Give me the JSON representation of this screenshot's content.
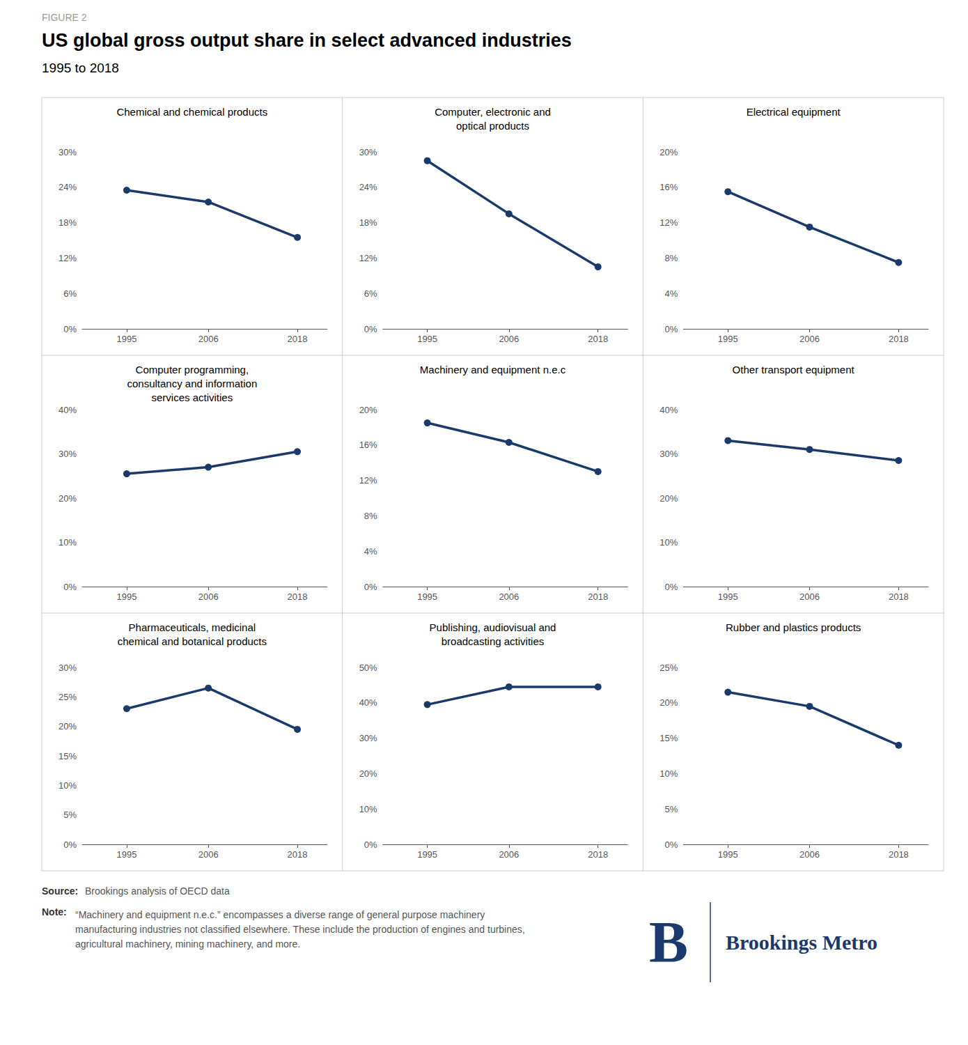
{
  "title": "US global gross output share in select advanced industries",
  "subtitle": "1995 to 2018",
  "annotations": [
    "FIGURE 2",
    "Source:",
    "Brookings analysis of OECD data",
    "Note:",
    "“Machinery and equipment n.e.c.” encompasses a diverse range of general purpose machinery manufacturing industries not classified elsewhere. These include the production of engines and turbines, agricultural machinery, mining machinery, and more.",
    "B",
    "Brookings Metro"
  ],
  "chart_data": [
    {
      "type": "line",
      "title": "Chemical and chemical products",
      "x": [
        1995,
        2006,
        2018
      ],
      "values": [
        0.235,
        0.215,
        0.155
      ],
      "xlim": [
        1989,
        2022
      ],
      "xticks": [
        1995,
        2006,
        2018
      ],
      "ylim": [
        0,
        0.3
      ],
      "yticks": [
        {
          "value": 0,
          "label": "0%"
        },
        {
          "value": 0.06,
          "label": "6%"
        },
        {
          "value": 0.12,
          "label": "12%"
        },
        {
          "value": 0.18,
          "label": "18%"
        },
        {
          "value": 0.24,
          "label": "24%"
        },
        {
          "value": 0.3,
          "label": "30%"
        }
      ],
      "color": "#1a3a6b",
      "marker": "circle",
      "grid": false
    },
    {
      "type": "line",
      "title": "Computer, electronic and\noptical products",
      "x": [
        1995,
        2006,
        2018
      ],
      "values": [
        0.285,
        0.195,
        0.105
      ],
      "xlim": [
        1989,
        2022
      ],
      "xticks": [
        1995,
        2006,
        2018
      ],
      "ylim": [
        0,
        0.3
      ],
      "yticks": [
        {
          "value": 0,
          "label": "0%"
        },
        {
          "value": 0.06,
          "label": "6%"
        },
        {
          "value": 0.12,
          "label": "12%"
        },
        {
          "value": 0.18,
          "label": "18%"
        },
        {
          "value": 0.24,
          "label": "24%"
        },
        {
          "value": 0.3,
          "label": "30%"
        }
      ],
      "color": "#1a3a6b",
      "marker": "circle",
      "grid": false
    },
    {
      "type": "line",
      "title": "Electrical equipment",
      "x": [
        1995,
        2006,
        2018
      ],
      "values": [
        0.155,
        0.115,
        0.075
      ],
      "xlim": [
        1989,
        2022
      ],
      "xticks": [
        1995,
        2006,
        2018
      ],
      "ylim": [
        0,
        0.2
      ],
      "yticks": [
        {
          "value": 0,
          "label": "0%"
        },
        {
          "value": 0.04,
          "label": "4%"
        },
        {
          "value": 0.08,
          "label": "8%"
        },
        {
          "value": 0.12,
          "label": "12%"
        },
        {
          "value": 0.16,
          "label": "16%"
        },
        {
          "value": 0.2,
          "label": "20%"
        }
      ],
      "color": "#1a3a6b",
      "marker": "circle",
      "grid": false
    },
    {
      "type": "line",
      "title": "Computer programming,\nconsultancy and information\nservices activities",
      "x": [
        1995,
        2006,
        2018
      ],
      "values": [
        0.255,
        0.27,
        0.305
      ],
      "xlim": [
        1989,
        2022
      ],
      "xticks": [
        1995,
        2006,
        2018
      ],
      "ylim": [
        0,
        0.4
      ],
      "yticks": [
        {
          "value": 0,
          "label": "0%"
        },
        {
          "value": 0.1,
          "label": "10%"
        },
        {
          "value": 0.2,
          "label": "20%"
        },
        {
          "value": 0.3,
          "label": "30%"
        },
        {
          "value": 0.4,
          "label": "40%"
        }
      ],
      "color": "#1a3a6b",
      "marker": "circle",
      "grid": false
    },
    {
      "type": "line",
      "title": "Machinery and equipment n.e.c",
      "x": [
        1995,
        2006,
        2018
      ],
      "values": [
        0.185,
        0.163,
        0.13
      ],
      "xlim": [
        1989,
        2022
      ],
      "xticks": [
        1995,
        2006,
        2018
      ],
      "ylim": [
        0,
        0.2
      ],
      "yticks": [
        {
          "value": 0,
          "label": "0%"
        },
        {
          "value": 0.04,
          "label": "4%"
        },
        {
          "value": 0.08,
          "label": "8%"
        },
        {
          "value": 0.12,
          "label": "12%"
        },
        {
          "value": 0.16,
          "label": "16%"
        },
        {
          "value": 0.2,
          "label": "20%"
        }
      ],
      "color": "#1a3a6b",
      "marker": "circle",
      "grid": false
    },
    {
      "type": "line",
      "title": "Other transport equipment",
      "x": [
        1995,
        2006,
        2018
      ],
      "values": [
        0.33,
        0.31,
        0.285
      ],
      "xlim": [
        1989,
        2022
      ],
      "xticks": [
        1995,
        2006,
        2018
      ],
      "ylim": [
        0,
        0.4
      ],
      "yticks": [
        {
          "value": 0,
          "label": "0%"
        },
        {
          "value": 0.1,
          "label": "10%"
        },
        {
          "value": 0.2,
          "label": "20%"
        },
        {
          "value": 0.3,
          "label": "30%"
        },
        {
          "value": 0.4,
          "label": "40%"
        }
      ],
      "color": "#1a3a6b",
      "marker": "circle",
      "grid": false
    },
    {
      "type": "line",
      "title": "Pharmaceuticals, medicinal\nchemical and botanical products",
      "x": [
        1995,
        2006,
        2018
      ],
      "values": [
        0.23,
        0.265,
        0.195
      ],
      "xlim": [
        1989,
        2022
      ],
      "xticks": [
        1995,
        2006,
        2018
      ],
      "ylim": [
        0,
        0.3
      ],
      "yticks": [
        {
          "value": 0,
          "label": "0%"
        },
        {
          "value": 0.05,
          "label": "5%"
        },
        {
          "value": 0.1,
          "label": "10%"
        },
        {
          "value": 0.15,
          "label": "15%"
        },
        {
          "value": 0.2,
          "label": "20%"
        },
        {
          "value": 0.25,
          "label": "25%"
        },
        {
          "value": 0.3,
          "label": "30%"
        }
      ],
      "color": "#1a3a6b",
      "marker": "circle",
      "grid": false
    },
    {
      "type": "line",
      "title": "Publishing, audiovisual and\nbroadcasting activities",
      "x": [
        1995,
        2006,
        2018
      ],
      "values": [
        0.395,
        0.445,
        0.445
      ],
      "xlim": [
        1989,
        2022
      ],
      "xticks": [
        1995,
        2006,
        2018
      ],
      "ylim": [
        0,
        0.5
      ],
      "yticks": [
        {
          "value": 0,
          "label": "0%"
        },
        {
          "value": 0.1,
          "label": "10%"
        },
        {
          "value": 0.2,
          "label": "20%"
        },
        {
          "value": 0.3,
          "label": "30%"
        },
        {
          "value": 0.4,
          "label": "40%"
        },
        {
          "value": 0.5,
          "label": "50%"
        }
      ],
      "color": "#1a3a6b",
      "marker": "circle",
      "grid": false
    },
    {
      "type": "line",
      "title": "Rubber and plastics products",
      "x": [
        1995,
        2006,
        2018
      ],
      "values": [
        0.215,
        0.195,
        0.14
      ],
      "xlim": [
        1989,
        2022
      ],
      "xticks": [
        1995,
        2006,
        2018
      ],
      "ylim": [
        0,
        0.25
      ],
      "yticks": [
        {
          "value": 0,
          "label": "0%"
        },
        {
          "value": 0.05,
          "label": "5%"
        },
        {
          "value": 0.1,
          "label": "10%"
        },
        {
          "value": 0.15,
          "label": "15%"
        },
        {
          "value": 0.2,
          "label": "20%"
        },
        {
          "value": 0.25,
          "label": "25%"
        }
      ],
      "color": "#1a3a6b",
      "marker": "circle",
      "grid": false
    }
  ]
}
